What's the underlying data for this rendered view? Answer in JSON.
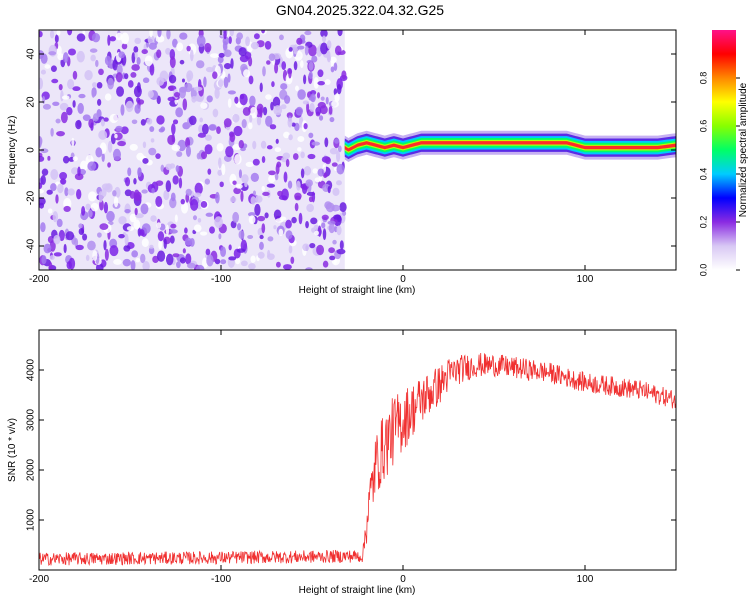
{
  "title": "GN04.2025.322.04.32.G25",
  "chart_data": [
    {
      "type": "heatmap",
      "title": "GN04.2025.322.04.32.G25",
      "xlabel": "Height of straight line (km)",
      "ylabel": "Frequency (Hz)",
      "xlim": [
        -200,
        150
      ],
      "ylim": [
        -50,
        50
      ],
      "xticks": [
        -200,
        -100,
        0,
        100
      ],
      "yticks": [
        -40,
        -20,
        0,
        20,
        40
      ],
      "noise_region_x": [
        -200,
        -32
      ],
      "signal_band": {
        "x": [
          -32,
          -30,
          -25,
          -20,
          -15,
          -10,
          -5,
          0,
          5,
          10,
          20,
          40,
          60,
          80,
          90,
          95,
          100,
          120,
          140,
          150
        ],
        "frequency": [
          1,
          0,
          2,
          3,
          2,
          1,
          2,
          1,
          2,
          3,
          3,
          3,
          3,
          3,
          3,
          2,
          1,
          1,
          1,
          2
        ]
      },
      "colorbar": {
        "label": "Normalized spectral amplitude",
        "range": [
          0.0,
          1.0
        ],
        "ticks": [
          0.0,
          0.2,
          0.4,
          0.6,
          0.8
        ],
        "colors": [
          "#ffffff",
          "#d8c8f4",
          "#8a2be2",
          "#0000ff",
          "#00ccff",
          "#00ff66",
          "#88ff00",
          "#ffff00",
          "#ff8800",
          "#ff0000",
          "#ff1188"
        ]
      }
    },
    {
      "type": "line",
      "xlabel": "Height of straight line (km)",
      "ylabel": "SNR (10 * v/v)",
      "xlim": [
        -200,
        150
      ],
      "ylim": [
        0,
        4800
      ],
      "xticks": [
        -200,
        -100,
        0,
        100
      ],
      "yticks": [
        1000,
        2000,
        3000,
        4000
      ],
      "color": "#f03030",
      "series": [
        {
          "name": "SNR",
          "x": [
            -200,
            -180,
            -160,
            -140,
            -120,
            -100,
            -80,
            -60,
            -40,
            -22,
            -20,
            -15,
            -10,
            -5,
            0,
            5,
            10,
            15,
            20,
            25,
            30,
            40,
            50,
            60,
            70,
            80,
            90,
            100,
            110,
            120,
            130,
            140,
            150
          ],
          "y": [
            220,
            225,
            230,
            235,
            240,
            245,
            255,
            260,
            270,
            280,
            1000,
            2100,
            2500,
            2800,
            3000,
            3200,
            3400,
            3550,
            3700,
            3900,
            4000,
            4100,
            4100,
            4050,
            4000,
            3950,
            3850,
            3750,
            3700,
            3650,
            3600,
            3500,
            3400
          ],
          "noise_amplitude": [
            130,
            130,
            130,
            130,
            130,
            130,
            130,
            130,
            130,
            130,
            500,
            650,
            700,
            700,
            650,
            550,
            500,
            450,
            400,
            350,
            300,
            250,
            230,
            220,
            220,
            210,
            200,
            200,
            200,
            200,
            200,
            190,
            190
          ]
        }
      ]
    }
  ]
}
